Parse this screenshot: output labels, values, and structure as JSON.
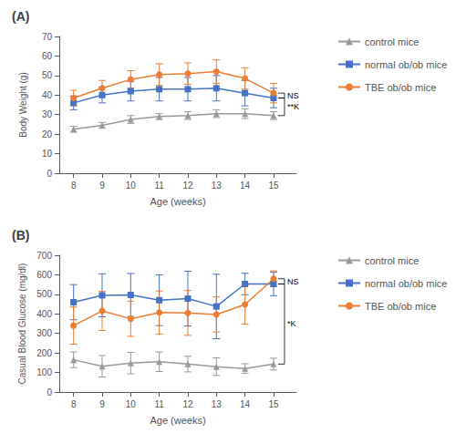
{
  "chart_data": [
    {
      "type": "line",
      "title": "(A)",
      "xlabel": "Age (weeks)",
      "ylabel": "Body Weight (g)",
      "x": [
        8,
        9,
        10,
        11,
        12,
        13,
        14,
        15
      ],
      "xlim": [
        7.5,
        15.8
      ],
      "xticks": [
        8,
        9,
        10,
        11,
        12,
        13,
        14,
        15
      ],
      "ylim": [
        0,
        70
      ],
      "yticks": [
        0,
        10,
        20,
        30,
        40,
        50,
        60,
        70
      ],
      "grid": false,
      "legend": "right",
      "series": [
        {
          "name": "control mice",
          "color": "#999999",
          "marker": "triangle",
          "values": [
            22.5,
            24.5,
            27.5,
            29.0,
            29.5,
            30.5,
            30.5,
            29.5
          ],
          "errors": [
            1.5,
            1.5,
            2.0,
            1.5,
            2.0,
            2.0,
            2.5,
            2.0
          ]
        },
        {
          "name": "normal ob/ob mice",
          "color": "#4472C4",
          "marker": "square",
          "values": [
            36.0,
            40.0,
            42.0,
            43.0,
            43.0,
            43.5,
            41.0,
            38.5
          ],
          "errors": [
            3.5,
            4.0,
            5.0,
            6.0,
            6.0,
            6.5,
            6.5,
            5.0
          ]
        },
        {
          "name": "TBE ob/ob mice",
          "color": "#ED7D31",
          "marker": "circle",
          "values": [
            38.5,
            43.5,
            48.0,
            50.5,
            51.0,
            52.0,
            48.5,
            41.0
          ],
          "errors": [
            4.0,
            4.0,
            4.5,
            5.5,
            5.5,
            6.0,
            5.5,
            5.0
          ]
        }
      ],
      "annotations": [
        {
          "text": "NS",
          "y1": 38.5,
          "y2": 41.0
        },
        {
          "text": "**K",
          "y1": 29.5,
          "y2": 38.5
        }
      ]
    },
    {
      "type": "line",
      "title": "(B)",
      "xlabel": "Age (weeks)",
      "ylabel": "Casual Blood Glucose (mg/dl)",
      "x": [
        8,
        9,
        10,
        11,
        12,
        13,
        14,
        15
      ],
      "xlim": [
        7.5,
        15.8
      ],
      "xticks": [
        8,
        9,
        10,
        11,
        12,
        13,
        14,
        15
      ],
      "ylim": [
        0,
        700
      ],
      "yticks": [
        0,
        100,
        200,
        300,
        400,
        500,
        600,
        700
      ],
      "grid": false,
      "legend": "right",
      "series": [
        {
          "name": "control mice",
          "color": "#999999",
          "marker": "triangle",
          "values": [
            165,
            132,
            148,
            155,
            143,
            130,
            120,
            143
          ],
          "errors": [
            40,
            55,
            55,
            50,
            40,
            45,
            25,
            30
          ]
        },
        {
          "name": "normal ob/ob mice",
          "color": "#4472C4",
          "marker": "square",
          "values": [
            460,
            495,
            497,
            470,
            478,
            438,
            553,
            553
          ],
          "errors": [
            90,
            110,
            110,
            130,
            140,
            165,
            55,
            60
          ]
        },
        {
          "name": "TBE ob/ob mice",
          "color": "#ED7D31",
          "marker": "circle",
          "values": [
            340,
            415,
            375,
            407,
            405,
            397,
            448,
            580
          ],
          "errors": [
            95,
            100,
            90,
            110,
            115,
            90,
            100,
            40
          ]
        }
      ],
      "annotations": [
        {
          "text": "NS",
          "y1": 553,
          "y2": 580
        },
        {
          "text": "*K",
          "y1": 143,
          "y2": 553
        }
      ]
    }
  ]
}
